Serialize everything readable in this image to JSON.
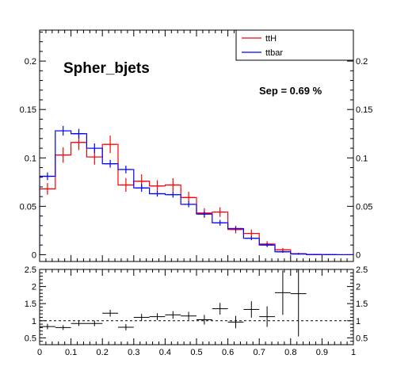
{
  "chart_data": [
    {
      "type": "histogram",
      "title": "Spher_bjets",
      "annotation": "Sep = 0.69 %",
      "xlim": [
        0,
        1
      ],
      "ylim": [
        -0.007,
        0.232
      ],
      "yticks": [
        0,
        0.05,
        0.1,
        0.15,
        0.2
      ],
      "ytick_labels": [
        "0",
        "0.05",
        "0.1",
        "0.15",
        "0.2"
      ],
      "bin_edges": [
        0,
        0.05,
        0.1,
        0.15,
        0.2,
        0.25,
        0.3,
        0.35,
        0.4,
        0.45,
        0.5,
        0.55,
        0.6,
        0.65,
        0.7,
        0.75,
        0.8,
        0.85,
        0.9,
        0.95,
        1.0
      ],
      "legend": {
        "placement": "top-right"
      },
      "series": [
        {
          "name": "ttH",
          "color": "#ff0000",
          "values": [
            0.068,
            0.103,
            0.116,
            0.101,
            0.114,
            0.072,
            0.076,
            0.071,
            0.072,
            0.059,
            0.043,
            0.044,
            0.026,
            0.022,
            0.011,
            0.005,
            0.001,
            0.0,
            0.0,
            0.0
          ],
          "errors": [
            0.006,
            0.008,
            0.008,
            0.008,
            0.009,
            0.007,
            0.007,
            0.006,
            0.007,
            0.006,
            0.005,
            0.005,
            0.004,
            0.004,
            0.003,
            0.002,
            0.001,
            0.0,
            0.0,
            0.0
          ]
        },
        {
          "name": "ttbar",
          "color": "#0000ff",
          "values": [
            0.081,
            0.128,
            0.125,
            0.11,
            0.094,
            0.088,
            0.069,
            0.063,
            0.062,
            0.052,
            0.042,
            0.033,
            0.027,
            0.017,
            0.01,
            0.003,
            0.0008,
            0.0003,
            0.0001,
            0.0
          ],
          "errors": [
            0.004,
            0.005,
            0.005,
            0.005,
            0.004,
            0.004,
            0.004,
            0.003,
            0.003,
            0.003,
            0.003,
            0.003,
            0.002,
            0.002,
            0.002,
            0.001,
            0.0005,
            0.0003,
            0.0001,
            0.0
          ]
        }
      ]
    },
    {
      "type": "scatter",
      "xlim": [
        0,
        1
      ],
      "ylim": [
        0.3,
        2.5
      ],
      "xticks": [
        0,
        0.1,
        0.2,
        0.3,
        0.4,
        0.5,
        0.6,
        0.7,
        0.8,
        0.9,
        1
      ],
      "xtick_labels": [
        "0",
        "0.1",
        "0.2",
        "0.3",
        "0.4",
        "0.5",
        "0.6",
        "0.7",
        "0.8",
        "0.9",
        "1"
      ],
      "yticks": [
        0.5,
        1,
        1.5,
        2,
        2.5
      ],
      "ytick_labels": [
        "0.5",
        "1",
        "1.5",
        "2",
        "2.5"
      ],
      "reference_line": 1,
      "x": [
        0.025,
        0.075,
        0.125,
        0.175,
        0.225,
        0.275,
        0.325,
        0.375,
        0.425,
        0.475,
        0.525,
        0.575,
        0.625,
        0.675,
        0.725,
        0.775,
        0.825
      ],
      "y": [
        0.83,
        0.8,
        0.92,
        0.92,
        1.22,
        0.81,
        1.1,
        1.12,
        1.17,
        1.14,
        1.03,
        1.35,
        0.96,
        1.33,
        1.12,
        1.82,
        1.79
      ],
      "yerr": [
        0.08,
        0.07,
        0.07,
        0.08,
        0.1,
        0.09,
        0.1,
        0.1,
        0.11,
        0.12,
        0.14,
        0.17,
        0.18,
        0.24,
        0.3,
        0.65,
        1.25
      ]
    }
  ]
}
